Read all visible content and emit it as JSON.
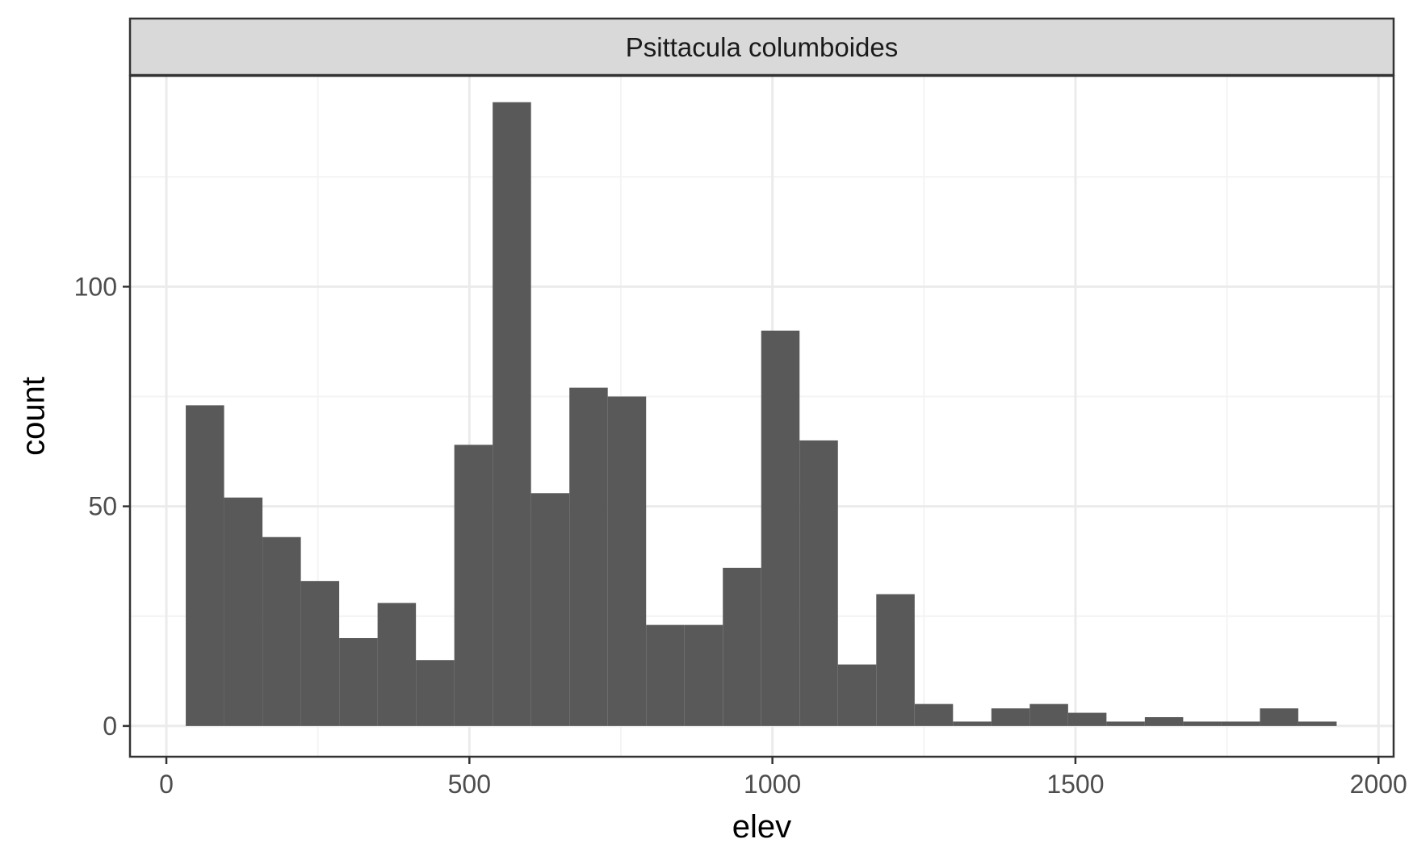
{
  "chart_data": {
    "type": "bar",
    "subtype": "histogram",
    "facet_label": "Psittacula columboides",
    "xlabel": "elev",
    "ylabel": "count",
    "xlim": [
      -60,
      2025
    ],
    "ylim": [
      -7,
      148
    ],
    "x_ticks": [
      0,
      500,
      1000,
      1500,
      2000
    ],
    "x_tick_labels": [
      "0",
      "500",
      "1000",
      "1500",
      "2000"
    ],
    "y_ticks": [
      0,
      50,
      100
    ],
    "y_tick_labels": [
      "0",
      "50",
      "100"
    ],
    "x_minor_gridlines": [
      250,
      750,
      1250,
      1750
    ],
    "y_minor_gridlines": [
      25,
      75,
      125
    ],
    "grid": true,
    "bin_width": 63.3,
    "bin_start": 32,
    "counts": [
      73,
      52,
      43,
      33,
      20,
      28,
      15,
      64,
      142,
      53,
      77,
      75,
      23,
      23,
      36,
      90,
      65,
      14,
      30,
      5,
      1,
      4,
      5,
      3,
      1,
      2,
      1,
      1,
      4,
      1
    ],
    "colors": {
      "bar": "#595959",
      "grid_major": "#ebebeb",
      "grid_minor": "#f4f4f4",
      "panel_border": "#333333",
      "strip_fill": "#d9d9d9",
      "strip_border": "#333333"
    }
  }
}
